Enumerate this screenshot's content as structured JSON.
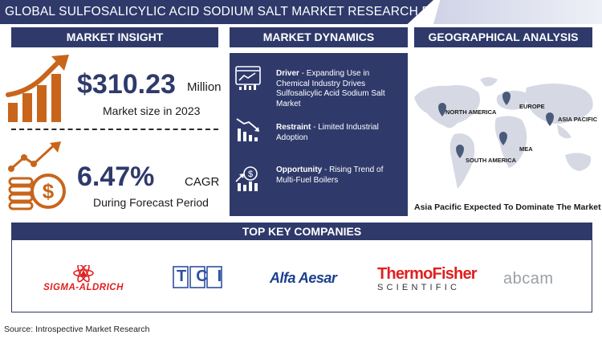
{
  "header": {
    "title": "GLOBAL SULFOSALICYLIC ACID SODIUM SALT MARKET RESEARCH REPORT"
  },
  "insight": {
    "heading": "MARKET INSIGHT",
    "market_value": "$310.23",
    "market_unit": "Million",
    "market_caption": "Market size in 2023",
    "cagr_value": "6.47%",
    "cagr_unit": "CAGR",
    "cagr_caption": "During Forecast Period",
    "icons": [
      "growth-chart-icon",
      "coin-stack-icon"
    ]
  },
  "dynamics": {
    "heading": "MARKET DYNAMICS",
    "items": [
      {
        "label": "Driver",
        "text": "- Expanding Use in Chemical Industry Drives Sulfosalicylic Acid Sodium Salt Market",
        "icon": "analytics-icon"
      },
      {
        "label": "Restraint",
        "text": "- Limited Industrial Adoption",
        "icon": "declining-bars-icon"
      },
      {
        "label": "Opportunity",
        "text": "- Rising Trend of Multi-Fuel Boilers",
        "icon": "dollar-growth-icon"
      }
    ]
  },
  "geo": {
    "heading": "GEOGRAPHICAL ANALYSIS",
    "regions": [
      "NORTH AMERICA",
      "EUROPE",
      "ASIA PACIFIC",
      "MEA",
      "SOUTH AMERICA"
    ],
    "footnote": "Asia Pacific Expected To Dominate The Market",
    "pin_color": "#4a5a7a"
  },
  "companies": {
    "heading": "TOP KEY COMPANIES",
    "logos": [
      "SIGMA-ALDRICH",
      "TCI",
      "Alfa Aesar",
      "ThermoFisher",
      "SCIENTIFIC",
      "abcam"
    ]
  },
  "source": "Source: Introspective Market Research",
  "colors": {
    "navy": "#2f3a6b",
    "orange": "#c8651b",
    "red": "#e02020"
  }
}
